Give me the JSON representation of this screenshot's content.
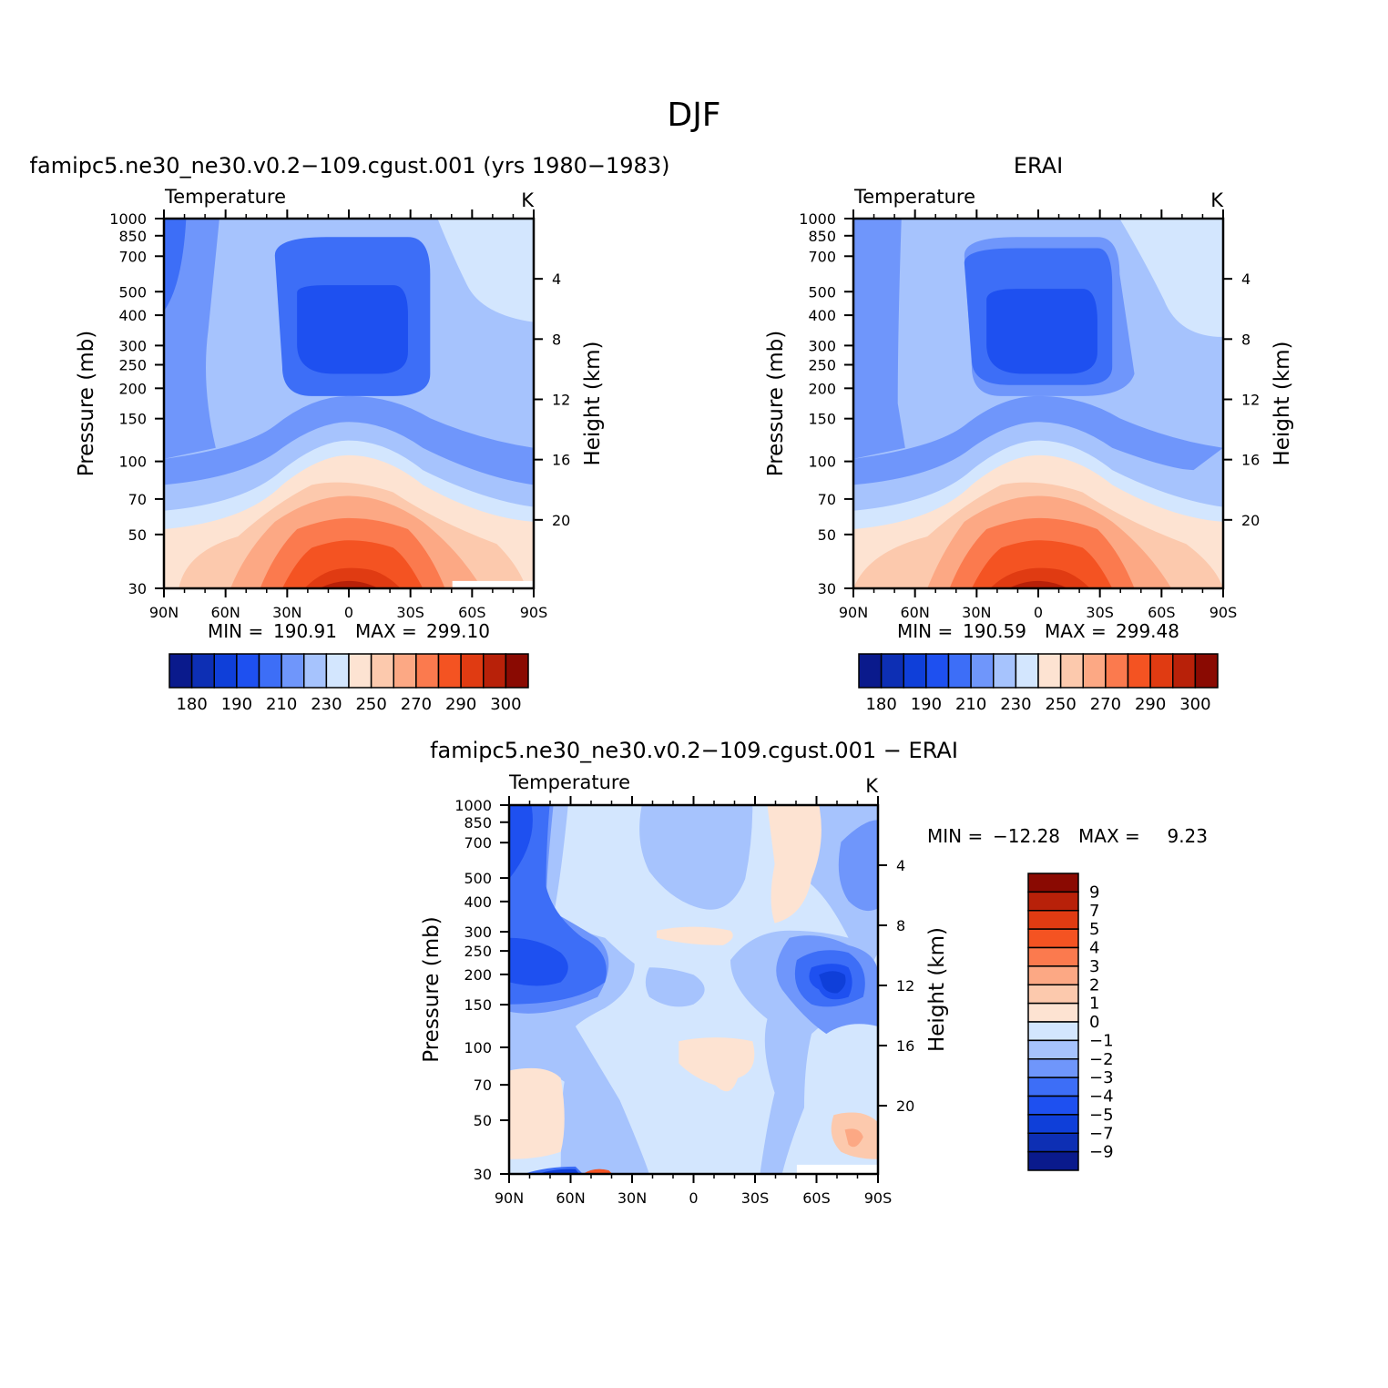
{
  "figure": {
    "suptitle": "DJF"
  },
  "chart_data": [
    {
      "id": "model",
      "type": "heatmap",
      "title": "famipc5.ne30_ne30.v0.2−109.cgust.001 (yrs 1980−1983)",
      "left_label": "Temperature",
      "right_label": "K",
      "xlabel": "",
      "ylabel": "Pressure (mb)",
      "ylabel_right": "Height (km)",
      "x_ticks": [
        "90N",
        "60N",
        "30N",
        "0",
        "30S",
        "60S",
        "90S"
      ],
      "x_values": [
        90,
        60,
        30,
        0,
        -30,
        -60,
        -90
      ],
      "y_ticks": [
        30,
        50,
        70,
        100,
        150,
        200,
        250,
        300,
        400,
        500,
        700,
        850,
        1000
      ],
      "y_right_ticks": [
        20,
        16,
        12,
        8,
        4
      ],
      "ylim": [
        1000,
        30
      ],
      "stats": {
        "min_label": "MIN =",
        "min": "190.91",
        "max_label": "MAX =",
        "max": "299.10"
      },
      "colorbar": {
        "orientation": "horizontal",
        "labels": [
          "180",
          "190",
          "210",
          "230",
          "250",
          "270",
          "290",
          "300"
        ],
        "colors": [
          "#0a1a8c",
          "#0d2fb4",
          "#0f3fd9",
          "#1e50f0",
          "#3d6ef7",
          "#6f96fb",
          "#a6c3fd",
          "#d3e6fe",
          "#fde3d2",
          "#fcc9ad",
          "#fca884",
          "#fb7a4e",
          "#f45322",
          "#e03b12",
          "#b82109",
          "#8a0a02"
        ]
      },
      "bands": [
        {
          "level": "<230",
          "color": "#d3e6fe"
        },
        {
          "level": "<=220",
          "color": "#a6c3fd"
        },
        {
          "level": "<=210",
          "color": "#6f96fb"
        },
        {
          "level": "<=200",
          "color": "#3d6ef7"
        },
        {
          "level": "<=195",
          "color": "#1e50f0"
        },
        {
          "level": ">=230",
          "color": "#fde3d2"
        },
        {
          "level": ">=250",
          "color": "#fcc9ad"
        },
        {
          "level": ">=260",
          "color": "#fca884"
        },
        {
          "level": ">=270",
          "color": "#fb7a4e"
        },
        {
          "level": ">=280",
          "color": "#f45322"
        },
        {
          "level": ">=290",
          "color": "#e03b12"
        },
        {
          "level": ">=295",
          "color": "#b82109"
        }
      ]
    },
    {
      "id": "obs",
      "type": "heatmap",
      "title": "ERAI",
      "left_label": "Temperature",
      "right_label": "K",
      "xlabel": "",
      "ylabel": "Pressure (mb)",
      "ylabel_right": "Height (km)",
      "x_ticks": [
        "90N",
        "60N",
        "30N",
        "0",
        "30S",
        "60S",
        "90S"
      ],
      "x_values": [
        90,
        60,
        30,
        0,
        -30,
        -60,
        -90
      ],
      "y_ticks": [
        30,
        50,
        70,
        100,
        150,
        200,
        250,
        300,
        400,
        500,
        700,
        850,
        1000
      ],
      "y_right_ticks": [
        20,
        16,
        12,
        8,
        4
      ],
      "ylim": [
        1000,
        30
      ],
      "stats": {
        "min_label": "MIN =",
        "min": "190.59",
        "max_label": "MAX =",
        "max": "299.48"
      },
      "colorbar": {
        "orientation": "horizontal",
        "labels": [
          "180",
          "190",
          "210",
          "230",
          "250",
          "270",
          "290",
          "300"
        ],
        "colors": [
          "#0a1a8c",
          "#0d2fb4",
          "#0f3fd9",
          "#1e50f0",
          "#3d6ef7",
          "#6f96fb",
          "#a6c3fd",
          "#d3e6fe",
          "#fde3d2",
          "#fcc9ad",
          "#fca884",
          "#fb7a4e",
          "#f45322",
          "#e03b12",
          "#b82109",
          "#8a0a02"
        ]
      }
    },
    {
      "id": "diff",
      "type": "heatmap",
      "title": "famipc5.ne30_ne30.v0.2−109.cgust.001 − ERAI",
      "left_label": "Temperature",
      "right_label": "K",
      "xlabel": "",
      "ylabel": "Pressure (mb)",
      "ylabel_right": "Height (km)",
      "x_ticks": [
        "90N",
        "60N",
        "30N",
        "0",
        "30S",
        "60S",
        "90S"
      ],
      "x_values": [
        90,
        60,
        30,
        0,
        -30,
        -60,
        -90
      ],
      "y_ticks": [
        30,
        50,
        70,
        100,
        150,
        200,
        250,
        300,
        400,
        500,
        700,
        850,
        1000
      ],
      "y_right_ticks": [
        20,
        16,
        12,
        8,
        4
      ],
      "ylim": [
        1000,
        30
      ],
      "stats": {
        "min_label": "MIN =",
        "min": "−12.28",
        "max_label": "MAX =",
        "max": "9.23"
      },
      "colorbar": {
        "orientation": "vertical",
        "labels": [
          "9",
          "7",
          "5",
          "4",
          "3",
          "2",
          "1",
          "0",
          "−1",
          "−2",
          "−3",
          "−4",
          "−5",
          "−7",
          "−9"
        ],
        "colors_top_to_bottom": [
          "#8a0a02",
          "#b82109",
          "#e03b12",
          "#f45322",
          "#fb7a4e",
          "#fca884",
          "#fcc9ad",
          "#fde3d2",
          "#d3e6fe",
          "#a6c3fd",
          "#6f96fb",
          "#3d6ef7",
          "#1e50f0",
          "#0f3fd9",
          "#0d2fb4",
          "#0a1a8c"
        ]
      }
    }
  ]
}
